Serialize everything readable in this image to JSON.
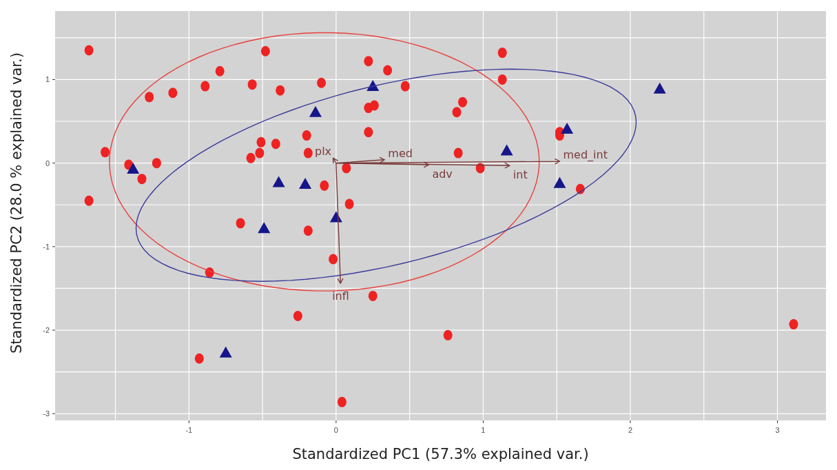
{
  "chart_data": {
    "type": "scatter",
    "xlabel": "Standardized PC1 (57.3% explained var.)",
    "ylabel": "Standardized PC2 (28.0 % explained var.)",
    "xlim": [
      -1.91,
      3.33
    ],
    "ylim": [
      -3.08,
      1.82
    ],
    "xticks": [
      {
        "value": -1.5,
        "label": null
      },
      -1,
      {
        "value": -0.5,
        "label": null
      },
      0,
      {
        "value": 0.5,
        "label": null
      },
      1,
      {
        "value": 1.5,
        "label": null
      },
      2,
      {
        "value": 2.5,
        "label": null
      },
      3
    ],
    "yticks": [
      -3,
      {
        "value": -2.5,
        "label": null
      },
      -2,
      {
        "value": -1.5,
        "label": null
      },
      -1,
      {
        "value": -0.5,
        "label": null
      },
      0,
      {
        "value": 0.5,
        "label": null
      },
      1,
      {
        "value": 1.5,
        "label": null
      }
    ],
    "grid": true,
    "annotations": [
      "plx",
      "med",
      "adv",
      "int",
      "med_int",
      "infl"
    ],
    "series": [
      {
        "color": "#ee2222",
        "marker": "circle",
        "x": [
          -1.68,
          -1.68,
          -1.57,
          -1.41,
          -1.32,
          -1.27,
          -1.22,
          -1.11,
          -0.89,
          -0.79,
          -0.48,
          -0.57,
          -0.38,
          -0.51,
          -0.41,
          -0.52,
          -0.58,
          -0.1,
          -0.2,
          -0.19,
          -0.08,
          -0.65,
          -0.19,
          -0.86,
          -0.26,
          -0.93,
          0.22,
          0.35,
          0.47,
          0.22,
          0.26,
          0.22,
          0.07,
          0.09,
          -0.02,
          0.25,
          0.04,
          1.13,
          1.13,
          0.82,
          0.86,
          0.83,
          0.98,
          1.52,
          1.52,
          1.66,
          0.76,
          3.11
        ],
        "values": [
          1.35,
          -0.45,
          0.13,
          -0.02,
          -0.19,
          0.79,
          0.0,
          0.84,
          0.92,
          1.1,
          1.34,
          0.94,
          0.87,
          0.25,
          0.23,
          0.12,
          0.06,
          0.96,
          0.33,
          0.12,
          -0.27,
          -0.72,
          -0.81,
          -1.31,
          -1.83,
          -2.34,
          1.22,
          1.11,
          0.92,
          0.66,
          0.69,
          0.37,
          -0.06,
          -0.49,
          -1.15,
          -1.59,
          -2.86,
          1.32,
          1.0,
          0.61,
          0.73,
          0.12,
          -0.06,
          0.33,
          0.37,
          -0.31,
          -2.06,
          -1.93
        ]
      },
      {
        "color": "#16168a",
        "marker": "triangle",
        "x": [
          -1.38,
          -0.75,
          -0.49,
          -0.39,
          -0.21,
          -0.14,
          0.25,
          0.0,
          1.16,
          1.57,
          1.52,
          2.2
        ],
        "values": [
          -0.07,
          -2.27,
          -0.78,
          -0.23,
          -0.25,
          0.61,
          0.92,
          -0.65,
          0.15,
          0.41,
          -0.24,
          0.89
        ]
      }
    ]
  }
}
